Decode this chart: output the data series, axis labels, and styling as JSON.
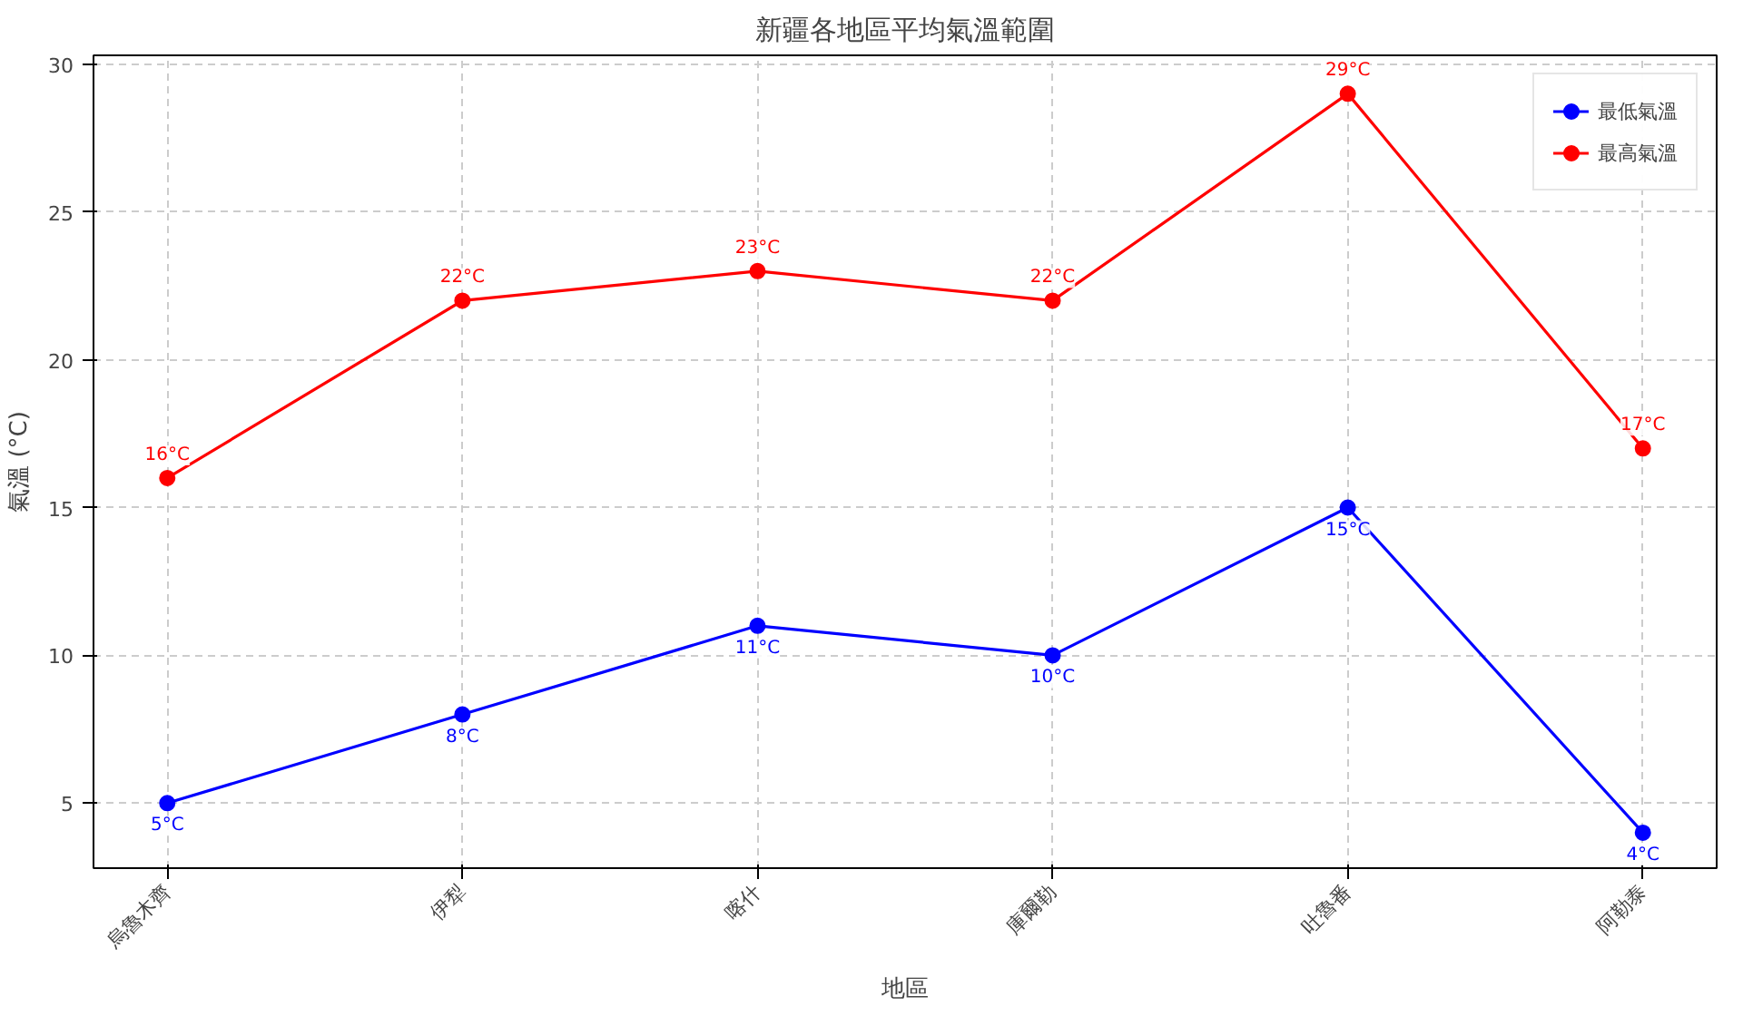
{
  "chart_data": {
    "type": "line",
    "title": "新疆各地區平均氣溫範圍",
    "xlabel": "地區",
    "ylabel": "氣溫 (°C)",
    "categories": [
      "烏魯木齊",
      "伊犁",
      "喀什",
      "庫爾勒",
      "吐魯番",
      "阿勒泰"
    ],
    "series": [
      {
        "name": "最低氣溫",
        "color": "#0000ff",
        "values": [
          5,
          8,
          11,
          10,
          15,
          4
        ],
        "value_labels": [
          "5°C",
          "8°C",
          "11°C",
          "10°C",
          "15°C",
          "4°C"
        ]
      },
      {
        "name": "最高氣溫",
        "color": "#ff0000",
        "values": [
          16,
          22,
          23,
          22,
          29,
          17
        ],
        "value_labels": [
          "16°C",
          "22°C",
          "23°C",
          "22°C",
          "29°C",
          "17°C"
        ]
      }
    ],
    "ylim": [
      2.8,
      30.3
    ],
    "yticks": [
      5,
      10,
      15,
      20,
      25,
      30
    ],
    "grid": true,
    "legend": "top right",
    "marker": "circle",
    "line_style": "solid"
  }
}
